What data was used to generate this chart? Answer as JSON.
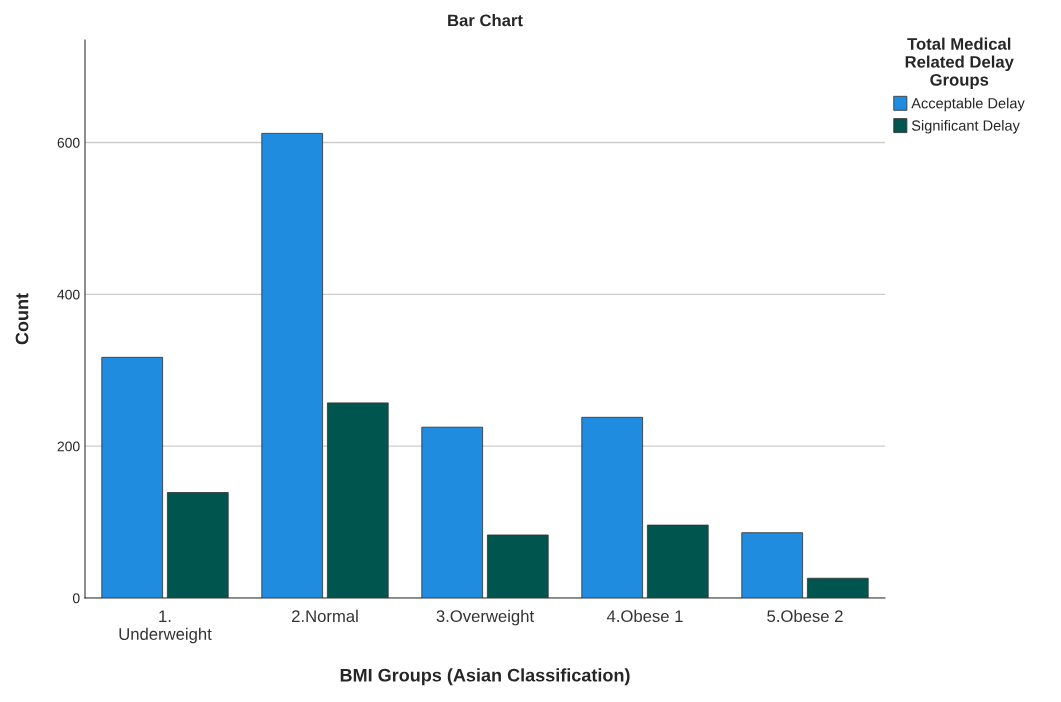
{
  "chart_data": {
    "type": "bar",
    "title": "Bar Chart",
    "xlabel": "BMI Groups (Asian Classification)",
    "ylabel": "Count",
    "legend_title": "Total Medical\nRelated Delay\nGroups",
    "categories": [
      "1.\nUnderweight",
      "2.Normal",
      "3.Overweight",
      "4.Obese 1",
      "5.Obese 2"
    ],
    "series": [
      {
        "name": "Acceptable Delay",
        "color": "#1f8ce0",
        "values": [
          317,
          612,
          225,
          238,
          86
        ]
      },
      {
        "name": "Significant Delay",
        "color": "#00564f",
        "values": [
          139,
          257,
          83,
          96,
          26
        ]
      }
    ],
    "ylim": [
      0,
      735
    ],
    "yticks": [
      0,
      200,
      400,
      600
    ],
    "grid": "y",
    "legend": "top right"
  }
}
